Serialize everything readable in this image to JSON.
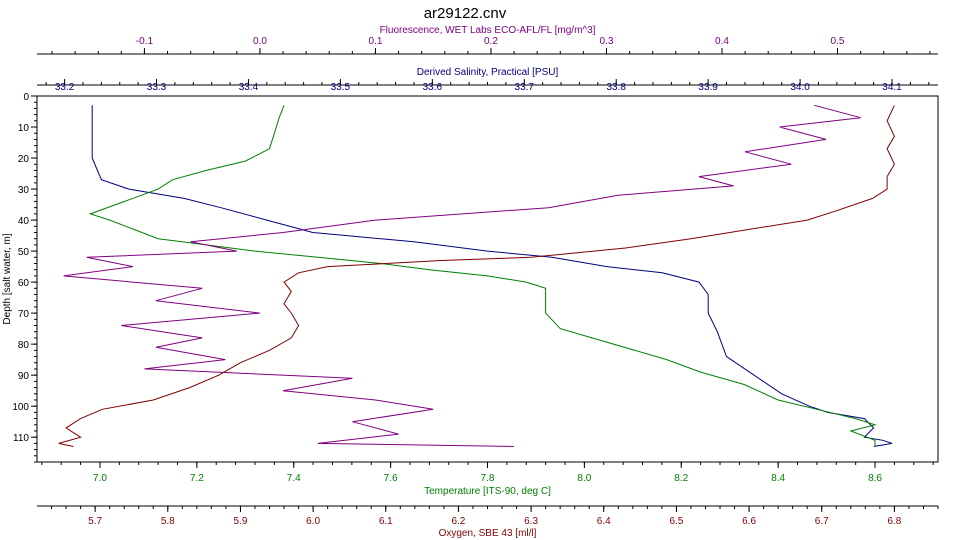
{
  "chart_data": {
    "type": "line",
    "title": "ar29122.cnv",
    "grid": false,
    "y_axis": {
      "label": "Depth [salt water, m]",
      "range": [
        0,
        118
      ],
      "ticks": [
        0,
        10,
        20,
        30,
        40,
        50,
        60,
        70,
        80,
        90,
        100,
        110
      ],
      "inverted": true
    },
    "x_axes": [
      {
        "id": "fluorescence",
        "position": "top-outer",
        "label": "Fluorescence, WET Labs ECO-AFL/FL [mg/m^3]",
        "range": [
          -0.193,
          0.587
        ],
        "ticks": [
          -0.1,
          0.0,
          0.1,
          0.2,
          0.3,
          0.4,
          0.5
        ],
        "tick_labels": [
          "-0.1",
          "0.0",
          "0.1",
          "0.2",
          "0.3",
          "0.4",
          "0.5"
        ],
        "color": "#800080"
      },
      {
        "id": "salinity",
        "position": "top-inner",
        "label": "Derived Salinity, Practical [PSU]",
        "range": [
          33.17,
          34.15
        ],
        "ticks": [
          33.2,
          33.3,
          33.4,
          33.5,
          33.6,
          33.7,
          33.8,
          33.9,
          34.0,
          34.1
        ],
        "tick_labels": [
          "33.2",
          "33.3",
          "33.4",
          "33.5",
          "33.6",
          "33.7",
          "33.8",
          "33.9",
          "34.0",
          "34.1"
        ],
        "color": "#000080"
      },
      {
        "id": "temperature",
        "position": "bottom-inner",
        "label": "Temperature [ITS-90, deg C]",
        "range": [
          6.87,
          8.73
        ],
        "ticks": [
          7.0,
          7.2,
          7.4,
          7.6,
          7.8,
          8.0,
          8.2,
          8.4,
          8.6
        ],
        "tick_labels": [
          "7.0",
          "7.2",
          "7.4",
          "7.6",
          "7.8",
          "8.0",
          "8.2",
          "8.4",
          "8.6"
        ],
        "color": "#008000"
      },
      {
        "id": "oxygen",
        "position": "bottom-outer",
        "label": "Oxygen, SBE 43 [ml/l]",
        "range": [
          5.62,
          6.86
        ],
        "ticks": [
          5.7,
          5.8,
          5.9,
          6.0,
          6.1,
          6.2,
          6.3,
          6.4,
          6.5,
          6.6,
          6.7,
          6.8
        ],
        "tick_labels": [
          "5.7",
          "5.8",
          "5.9",
          "6.0",
          "6.1",
          "6.2",
          "6.3",
          "6.4",
          "6.5",
          "6.6",
          "6.7",
          "6.8"
        ],
        "color": "#800000"
      }
    ],
    "series": [
      {
        "axis": "salinity",
        "color": "#000080",
        "points": [
          [
            33.23,
            3
          ],
          [
            33.23,
            20
          ],
          [
            33.24,
            27
          ],
          [
            33.27,
            30
          ],
          [
            33.33,
            33
          ],
          [
            33.37,
            36
          ],
          [
            33.42,
            40
          ],
          [
            33.47,
            44
          ],
          [
            33.58,
            47
          ],
          [
            33.66,
            50
          ],
          [
            33.73,
            52
          ],
          [
            33.79,
            55
          ],
          [
            33.85,
            57
          ],
          [
            33.89,
            60
          ],
          [
            33.9,
            64
          ],
          [
            33.9,
            70
          ],
          [
            33.91,
            76
          ],
          [
            33.92,
            84
          ],
          [
            33.95,
            90
          ],
          [
            33.98,
            96
          ],
          [
            34.01,
            100
          ],
          [
            34.03,
            102
          ],
          [
            34.07,
            104
          ],
          [
            34.08,
            107
          ],
          [
            34.07,
            110
          ],
          [
            34.09,
            111
          ],
          [
            34.1,
            112
          ],
          [
            34.08,
            113
          ]
        ]
      },
      {
        "axis": "temperature",
        "color": "#008000",
        "points": [
          [
            7.38,
            3
          ],
          [
            7.37,
            7
          ],
          [
            7.36,
            12
          ],
          [
            7.35,
            17
          ],
          [
            7.3,
            21
          ],
          [
            7.22,
            24
          ],
          [
            7.15,
            27
          ],
          [
            7.12,
            30
          ],
          [
            7.05,
            34
          ],
          [
            6.98,
            38
          ],
          [
            7.02,
            40
          ],
          [
            7.07,
            43
          ],
          [
            7.12,
            46
          ],
          [
            7.22,
            48
          ],
          [
            7.32,
            50
          ],
          [
            7.45,
            52
          ],
          [
            7.58,
            54
          ],
          [
            7.68,
            56
          ],
          [
            7.8,
            58
          ],
          [
            7.88,
            60
          ],
          [
            7.92,
            62
          ],
          [
            7.92,
            66
          ],
          [
            7.92,
            70
          ],
          [
            7.95,
            75
          ],
          [
            8.06,
            80
          ],
          [
            8.17,
            85
          ],
          [
            8.24,
            89
          ],
          [
            8.33,
            93
          ],
          [
            8.4,
            98
          ],
          [
            8.48,
            101
          ],
          [
            8.56,
            104
          ],
          [
            8.6,
            106
          ],
          [
            8.55,
            108
          ],
          [
            8.6,
            111
          ],
          [
            8.6,
            113
          ]
        ]
      },
      {
        "axis": "fluorescence",
        "color": "#800080",
        "points": [
          [
            0.48,
            3
          ],
          [
            0.52,
            7
          ],
          [
            0.45,
            10
          ],
          [
            0.49,
            14
          ],
          [
            0.42,
            18
          ],
          [
            0.46,
            22
          ],
          [
            0.38,
            26
          ],
          [
            0.41,
            29
          ],
          [
            0.31,
            32
          ],
          [
            0.25,
            36
          ],
          [
            0.1,
            40
          ],
          [
            0.02,
            44
          ],
          [
            -0.06,
            47
          ],
          [
            -0.02,
            50
          ],
          [
            -0.15,
            52
          ],
          [
            -0.11,
            55
          ],
          [
            -0.17,
            58
          ],
          [
            -0.05,
            62
          ],
          [
            -0.09,
            66
          ],
          [
            0.0,
            70
          ],
          [
            -0.12,
            74
          ],
          [
            -0.05,
            78
          ],
          [
            -0.09,
            81
          ],
          [
            -0.03,
            85
          ],
          [
            -0.1,
            88
          ],
          [
            0.08,
            91
          ],
          [
            0.02,
            95
          ],
          [
            0.1,
            98
          ],
          [
            0.15,
            101
          ],
          [
            0.08,
            105
          ],
          [
            0.12,
            109
          ],
          [
            0.05,
            112
          ],
          [
            0.22,
            113
          ]
        ]
      },
      {
        "axis": "oxygen",
        "color": "#800000",
        "points": [
          [
            6.8,
            3
          ],
          [
            6.79,
            8
          ],
          [
            6.8,
            13
          ],
          [
            6.79,
            17
          ],
          [
            6.8,
            22
          ],
          [
            6.79,
            26
          ],
          [
            6.79,
            30
          ],
          [
            6.77,
            33
          ],
          [
            6.72,
            37
          ],
          [
            6.68,
            40
          ],
          [
            6.6,
            43
          ],
          [
            6.52,
            46
          ],
          [
            6.43,
            49
          ],
          [
            6.3,
            52
          ],
          [
            6.18,
            53
          ],
          [
            6.02,
            55
          ],
          [
            5.98,
            57
          ],
          [
            5.96,
            60
          ],
          [
            5.97,
            63
          ],
          [
            5.96,
            67
          ],
          [
            5.97,
            70
          ],
          [
            5.98,
            74
          ],
          [
            5.97,
            78
          ],
          [
            5.94,
            82
          ],
          [
            5.9,
            86
          ],
          [
            5.87,
            90
          ],
          [
            5.83,
            94
          ],
          [
            5.78,
            98
          ],
          [
            5.71,
            101
          ],
          [
            5.68,
            104
          ],
          [
            5.66,
            107
          ],
          [
            5.68,
            110
          ],
          [
            5.65,
            112
          ],
          [
            5.67,
            113
          ]
        ]
      }
    ]
  }
}
